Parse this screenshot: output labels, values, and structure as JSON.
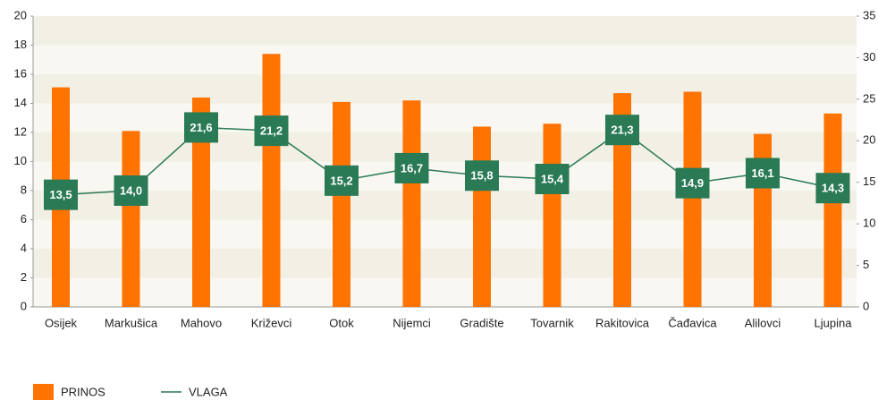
{
  "chart_data": {
    "type": "bar-line",
    "categories": [
      "Osijek",
      "Markušica",
      "Mahovo",
      "Križevci",
      "Otok",
      "Nijemci",
      "Gradište",
      "Tovarnik",
      "Rakitovica",
      "Čađavica",
      "Alilovci",
      "Ljupina"
    ],
    "series": [
      {
        "name": "PRINOS",
        "type": "bar",
        "color": "#ff7300",
        "values": [
          15.1,
          12.1,
          14.4,
          17.4,
          14.1,
          14.2,
          12.4,
          12.6,
          14.7,
          14.8,
          11.9,
          13.3
        ]
      },
      {
        "name": "VLAGA",
        "type": "line",
        "axis": "y2",
        "color": "#2a7a55",
        "values": [
          13.5,
          14.0,
          21.6,
          21.2,
          15.2,
          16.7,
          15.8,
          15.4,
          21.3,
          14.9,
          16.1,
          14.3
        ],
        "value_labels": [
          "13,5",
          "14,0",
          "21,6",
          "21,2",
          "15,2",
          "16,7",
          "15,8",
          "15,4",
          "21,3",
          "14,9",
          "16,1",
          "14,3"
        ]
      }
    ],
    "ylim": [
      0,
      20
    ],
    "yticks": [
      0,
      2,
      4,
      6,
      8,
      10,
      12,
      14,
      16,
      18,
      20
    ],
    "y2lim": [
      0,
      35
    ],
    "y2ticks": [
      0,
      5,
      10,
      15,
      20,
      25,
      30,
      35
    ],
    "grid": "bands",
    "legend": "bottom-left"
  }
}
